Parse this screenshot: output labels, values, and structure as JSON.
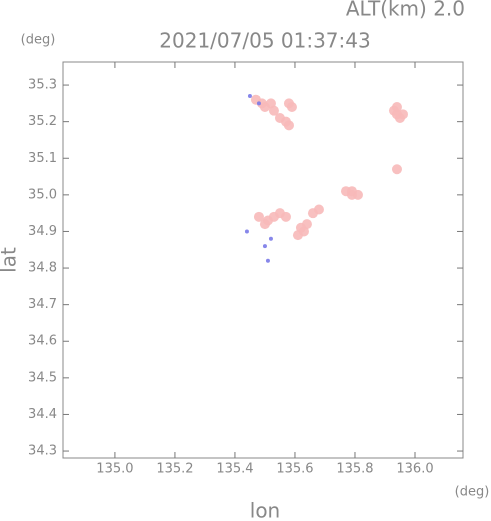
{
  "chart_data": {
    "type": "scatter",
    "title": "2021/07/05 01:37:43",
    "subtitle": "ALT(km) 2.0",
    "x_label": "lon",
    "y_label": "lat",
    "x_unit": "(deg)",
    "y_unit": "(deg)",
    "xlim": [
      134.827,
      136.16
    ],
    "ylim": [
      34.281,
      35.363
    ],
    "xticks": [
      {
        "value": 135,
        "label": "135.0"
      },
      135.2,
      135.4,
      135.6,
      135.8,
      {
        "value": 136,
        "label": "136.0"
      }
    ],
    "yticks": [
      34.3,
      34.4,
      34.5,
      34.6,
      34.7,
      34.8,
      34.9,
      {
        "value": 35,
        "label": "35.0"
      },
      35.1,
      35.2,
      35.3
    ],
    "series": [
      {
        "color": "#f7b9b9",
        "x": [
          135.47,
          135.49,
          135.5,
          135.52,
          135.53,
          135.55,
          135.57,
          135.58,
          135.58,
          135.59,
          135.93,
          135.94,
          135.95,
          135.94,
          135.96,
          135.94,
          135.77,
          135.79,
          135.81,
          135.79,
          135.62,
          135.64,
          135.66,
          135.68,
          135.61,
          135.63,
          135.48,
          135.51,
          135.53,
          135.55,
          135.57,
          135.5
        ],
        "y": [
          35.26,
          35.25,
          35.24,
          35.25,
          35.23,
          35.21,
          35.2,
          35.19,
          35.25,
          35.24,
          35.23,
          35.22,
          35.21,
          35.24,
          35.22,
          35.07,
          35.01,
          35.0,
          35.0,
          35.01,
          34.91,
          34.92,
          34.95,
          34.96,
          34.89,
          34.9,
          34.94,
          34.93,
          34.94,
          34.95,
          34.94,
          34.92
        ]
      },
      {
        "color": "#7a7ae8",
        "x": [
          135.45,
          135.44,
          135.5,
          135.52,
          135.51,
          135.48
        ],
        "y": [
          35.27,
          34.9,
          34.86,
          34.88,
          34.82,
          35.25
        ]
      }
    ]
  }
}
